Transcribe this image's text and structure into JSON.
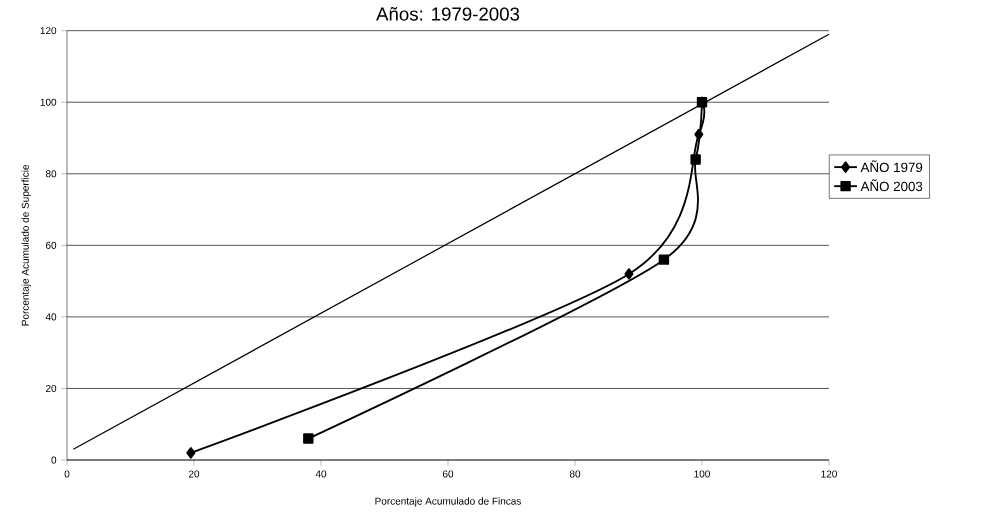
{
  "chart_data": {
    "type": "line",
    "title": "Años: 1979-2003",
    "xlabel": "Porcentaje Acumulado de Fincas",
    "ylabel": "Porcentaje Acumulado de Superficie",
    "xlim": [
      0,
      120
    ],
    "ylim": [
      0,
      120
    ],
    "xticks": [
      0,
      20,
      40,
      60,
      80,
      100,
      120
    ],
    "yticks": [
      0,
      20,
      40,
      60,
      80,
      100,
      120
    ],
    "grid": "y",
    "legend": "right",
    "line_style": "solid",
    "series": [
      {
        "name": "AÑO 1979",
        "color": "#000000",
        "marker": "diamond",
        "x": [
          19.5,
          88.5,
          99.5,
          100
        ],
        "values": [
          2,
          52,
          91,
          100
        ]
      },
      {
        "name": "AÑO 2003",
        "color": "#000000",
        "marker": "square",
        "x": [
          38,
          94,
          99,
          100
        ],
        "values": [
          6,
          56,
          84,
          100
        ]
      },
      {
        "color": "#000000",
        "marker": "none",
        "x": [
          1,
          120
        ],
        "values": [
          3,
          119
        ]
      }
    ]
  }
}
